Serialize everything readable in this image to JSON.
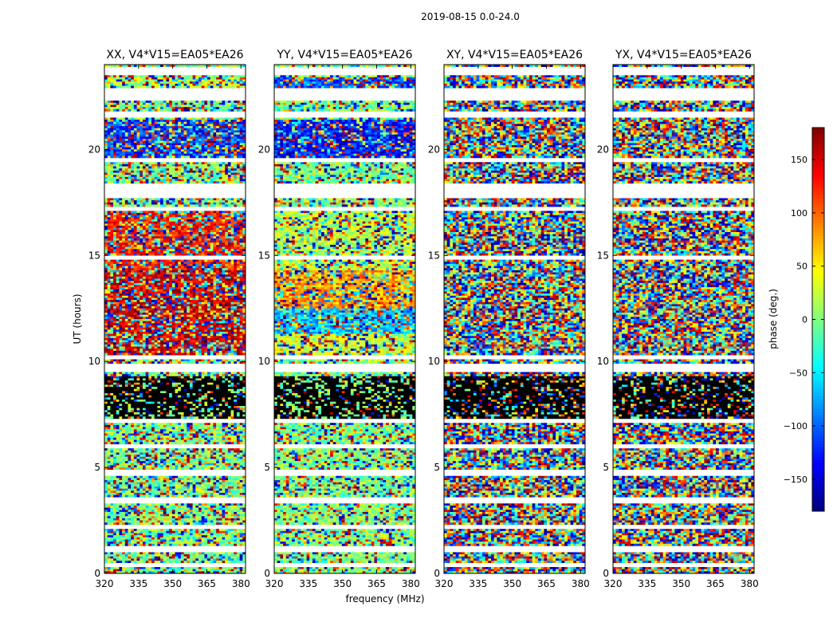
{
  "figure": {
    "suptitle": "2019-08-15 0.0-24.0",
    "xlabel": "frequency (MHz)",
    "ylabel": "UT (hours)"
  },
  "chart_data": {
    "type": "heatmap",
    "title": "2019-08-15 0.0-24.0",
    "xlabel": "frequency (MHz)",
    "ylabel": "UT (hours)",
    "xlim": [
      320,
      382
    ],
    "ylim": [
      0,
      24
    ],
    "x_ticks": [
      320,
      335,
      350,
      365,
      380
    ],
    "y_ticks": [
      0,
      5,
      10,
      15,
      20
    ],
    "colormap": "jet",
    "colorbar": {
      "label": "phase (deg.)",
      "range": [
        -180,
        180
      ],
      "ticks": [
        -150,
        -100,
        -50,
        0,
        50,
        100,
        150
      ],
      "tick_labels": [
        "−150",
        "−100",
        "−50",
        "0",
        "50",
        "100",
        "150"
      ]
    },
    "panels": [
      {
        "title": "XX, V4*V15=EA05*EA26",
        "noise": 0.55
      },
      {
        "title": "YY, V4*V15=EA05*EA26",
        "noise": 0.45
      },
      {
        "title": "XY, V4*V15=EA05*EA26",
        "noise": 1.0
      },
      {
        "title": "YX, V4*V15=EA05*EA26",
        "noise": 1.0
      }
    ],
    "flagged_hours": [
      [
        0.3,
        0.5
      ],
      [
        1.0,
        1.3
      ],
      [
        2.1,
        2.3
      ],
      [
        3.3,
        3.6
      ],
      [
        4.6,
        4.9
      ],
      [
        5.9,
        6.1
      ],
      [
        7.1,
        7.3
      ],
      [
        9.5,
        9.9
      ],
      [
        10.1,
        10.3
      ],
      [
        14.8,
        15.0
      ],
      [
        17.1,
        17.3
      ],
      [
        17.7,
        18.4
      ],
      [
        19.4,
        19.6
      ],
      [
        21.5,
        21.8
      ],
      [
        22.3,
        22.9
      ],
      [
        23.5,
        23.9
      ]
    ]
  }
}
